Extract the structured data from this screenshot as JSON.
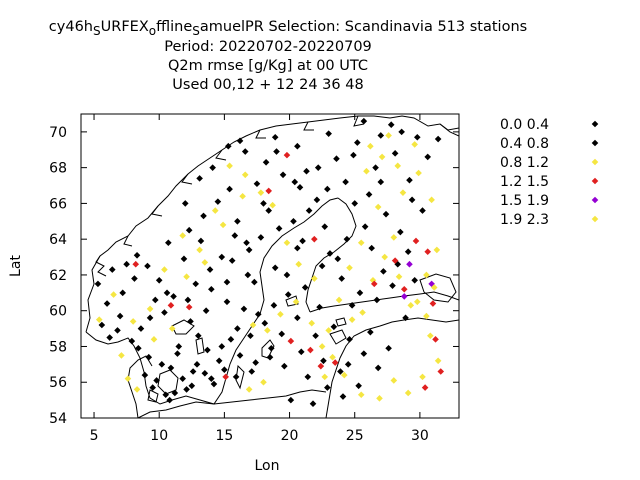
{
  "chart_data": {
    "type": "scatter",
    "title_lines": [
      "cy46h_S URFEX_o ffline_S amuelPR   Selection: Scandinavia    513 stations",
      "Period: 20220702-20220709",
      "Q2m rmse [g/Kg] at  00 UTC",
      "Used  00,12  + 12 24 36 48"
    ],
    "title_parts": {
      "t1": "cy46h",
      "s1": "S",
      "t2": "URFEX",
      "s2": "o",
      "t3": "ffline",
      "s3": "S",
      "t4": "amuelPR   Selection: Scandinavia    513 stations"
    },
    "xlabel": "Lon",
    "ylabel": "Lat",
    "xlim": [
      4,
      33
    ],
    "ylim": [
      54,
      71
    ],
    "xticks": [
      5,
      10,
      15,
      20,
      25,
      30
    ],
    "yticks": [
      54,
      56,
      58,
      60,
      62,
      64,
      66,
      68,
      70
    ],
    "legend_position": "right",
    "series": [
      {
        "name": "0.0 0.4",
        "color": "#000000",
        "points": [
          [
            11.2,
            55.4
          ],
          [
            12.1,
            55.6
          ],
          [
            10.5,
            55.3
          ],
          [
            9.8,
            56.1
          ],
          [
            10.2,
            57.0
          ],
          [
            8.9,
            56.4
          ],
          [
            11.8,
            56.2
          ],
          [
            12.5,
            55.8
          ],
          [
            9.5,
            55.7
          ],
          [
            10.9,
            56.8
          ],
          [
            14.2,
            55.9
          ],
          [
            13.5,
            56.5
          ],
          [
            15.0,
            56.7
          ],
          [
            16.2,
            57.5
          ],
          [
            14.8,
            58.0
          ],
          [
            17.0,
            58.6
          ],
          [
            18.1,
            59.3
          ],
          [
            17.6,
            59.8
          ],
          [
            16.5,
            60.1
          ],
          [
            15.2,
            60.5
          ],
          [
            14.0,
            61.2
          ],
          [
            12.8,
            61.5
          ],
          [
            13.9,
            62.3
          ],
          [
            15.6,
            62.8
          ],
          [
            16.9,
            63.4
          ],
          [
            17.8,
            64.1
          ],
          [
            19.2,
            64.6
          ],
          [
            20.3,
            65.0
          ],
          [
            21.5,
            65.6
          ],
          [
            22.1,
            66.2
          ],
          [
            20.8,
            66.9
          ],
          [
            19.5,
            67.6
          ],
          [
            18.2,
            68.3
          ],
          [
            16.6,
            68.9
          ],
          [
            15.3,
            69.2
          ],
          [
            23.6,
            68.5
          ],
          [
            25.2,
            69.4
          ],
          [
            27.0,
            69.8
          ],
          [
            28.6,
            70.0
          ],
          [
            29.8,
            69.7
          ],
          [
            24.3,
            67.2
          ],
          [
            26.1,
            66.5
          ],
          [
            27.4,
            65.4
          ],
          [
            25.8,
            64.7
          ],
          [
            24.4,
            64.0
          ],
          [
            23.1,
            63.2
          ],
          [
            22.5,
            62.5
          ],
          [
            24.0,
            61.8
          ],
          [
            25.4,
            61.0
          ],
          [
            26.7,
            60.6
          ],
          [
            27.9,
            61.4
          ],
          [
            28.3,
            62.6
          ],
          [
            29.1,
            63.3
          ],
          [
            5.3,
            61.5
          ],
          [
            6.0,
            60.4
          ],
          [
            5.6,
            59.2
          ],
          [
            6.8,
            58.9
          ],
          [
            7.9,
            58.3
          ],
          [
            8.6,
            59.0
          ],
          [
            9.3,
            59.6
          ],
          [
            10.4,
            59.9
          ],
          [
            11.1,
            60.8
          ],
          [
            10.0,
            61.7
          ],
          [
            9.1,
            62.5
          ],
          [
            8.3,
            63.1
          ],
          [
            10.7,
            63.8
          ],
          [
            12.3,
            64.5
          ],
          [
            13.4,
            65.3
          ],
          [
            14.5,
            66.1
          ],
          [
            15.4,
            66.8
          ],
          [
            13.1,
            67.4
          ],
          [
            12.0,
            66.0
          ],
          [
            6.4,
            62.3
          ],
          [
            7.2,
            61.0
          ],
          [
            18.6,
            57.9
          ],
          [
            19.4,
            58.7
          ],
          [
            20.6,
            59.6
          ],
          [
            22.3,
            60.2
          ],
          [
            23.4,
            59.1
          ],
          [
            24.6,
            58.4
          ],
          [
            25.7,
            57.6
          ],
          [
            26.8,
            56.8
          ],
          [
            27.6,
            57.9
          ],
          [
            21.4,
            56.3
          ],
          [
            22.9,
            55.7
          ],
          [
            24.1,
            55.2
          ],
          [
            20.1,
            55.0
          ],
          [
            21.8,
            54.8
          ],
          [
            13.0,
            58.6
          ],
          [
            14.6,
            57.2
          ],
          [
            11.5,
            58.0
          ],
          [
            12.4,
            59.4
          ],
          [
            16.0,
            59.0
          ],
          [
            17.3,
            61.6
          ],
          [
            18.9,
            62.4
          ],
          [
            20.6,
            63.5
          ],
          [
            18.4,
            65.6
          ],
          [
            16.0,
            65.0
          ],
          [
            22.7,
            64.7
          ],
          [
            26.6,
            68.0
          ],
          [
            28.1,
            68.8
          ],
          [
            31.4,
            69.6
          ],
          [
            30.6,
            68.6
          ],
          [
            29.4,
            66.2
          ],
          [
            21.2,
            61.3
          ],
          [
            23.7,
            62.9
          ],
          [
            19.9,
            60.9
          ],
          [
            15.8,
            64.2
          ]
        ]
      },
      {
        "name": "0.4 0.8",
        "color": "#000000",
        "points": [
          [
            10.8,
            55.0
          ],
          [
            12.6,
            56.6
          ],
          [
            9.2,
            57.4
          ],
          [
            11.4,
            57.6
          ],
          [
            13.7,
            57.8
          ],
          [
            15.5,
            58.4
          ],
          [
            17.4,
            57.1
          ],
          [
            18.8,
            60.3
          ],
          [
            16.8,
            62.0
          ],
          [
            14.8,
            63.0
          ],
          [
            19.8,
            62.0
          ],
          [
            21.0,
            63.9
          ],
          [
            22.9,
            66.8
          ],
          [
            21.3,
            67.8
          ],
          [
            19.0,
            68.9
          ],
          [
            17.5,
            67.1
          ],
          [
            25.0,
            66.0
          ],
          [
            26.3,
            63.5
          ],
          [
            27.2,
            62.2
          ],
          [
            24.8,
            60.3
          ],
          [
            22.0,
            58.6
          ],
          [
            23.9,
            56.6
          ],
          [
            25.3,
            55.8
          ],
          [
            26.2,
            58.8
          ],
          [
            28.9,
            59.6
          ],
          [
            29.6,
            61.7
          ],
          [
            7.5,
            62.6
          ],
          [
            8.1,
            61.8
          ],
          [
            9.7,
            60.6
          ],
          [
            7.0,
            59.7
          ],
          [
            8.4,
            57.9
          ],
          [
            6.2,
            58.5
          ],
          [
            11.9,
            62.9
          ],
          [
            13.2,
            63.9
          ],
          [
            14.1,
            68.0
          ],
          [
            16.2,
            69.5
          ],
          [
            18.9,
            69.7
          ],
          [
            20.6,
            69.2
          ],
          [
            23.0,
            69.9
          ],
          [
            25.7,
            70.6
          ],
          [
            27.8,
            70.4
          ],
          [
            29.2,
            67.3
          ],
          [
            30.2,
            65.6
          ],
          [
            28.5,
            64.4
          ],
          [
            27.0,
            67.2
          ],
          [
            24.9,
            68.7
          ],
          [
            22.2,
            68.0
          ],
          [
            20.4,
            67.2
          ],
          [
            18.0,
            66.0
          ],
          [
            16.7,
            63.8
          ],
          [
            15.2,
            61.6
          ],
          [
            13.6,
            60.0
          ],
          [
            12.2,
            60.6
          ],
          [
            10.6,
            61.0
          ],
          [
            12.9,
            57.0
          ],
          [
            14.0,
            56.2
          ],
          [
            15.9,
            56.3
          ],
          [
            17.1,
            56.6
          ],
          [
            18.5,
            57.4
          ],
          [
            19.6,
            56.9
          ],
          [
            20.9,
            57.7
          ],
          [
            22.6,
            57.2
          ],
          [
            24.5,
            57.0
          ]
        ]
      },
      {
        "name": "0.8 1.2",
        "color": "#f5e642",
        "points": [
          [
            5.4,
            59.5
          ],
          [
            6.5,
            60.9
          ],
          [
            7.6,
            56.2
          ],
          [
            8.3,
            55.6
          ],
          [
            9.6,
            58.4
          ],
          [
            11.0,
            59.0
          ],
          [
            12.1,
            61.9
          ],
          [
            13.5,
            62.7
          ],
          [
            14.9,
            64.8
          ],
          [
            16.4,
            66.4
          ],
          [
            17.2,
            59.2
          ],
          [
            18.3,
            58.9
          ],
          [
            19.3,
            59.8
          ],
          [
            20.5,
            60.5
          ],
          [
            21.7,
            59.3
          ],
          [
            22.5,
            58.0
          ],
          [
            23.3,
            57.4
          ],
          [
            24.8,
            59.5
          ],
          [
            25.6,
            59.9
          ],
          [
            26.4,
            61.7
          ],
          [
            27.3,
            63.0
          ],
          [
            28.0,
            64.1
          ],
          [
            28.7,
            66.6
          ],
          [
            29.9,
            67.7
          ],
          [
            30.9,
            66.2
          ],
          [
            31.3,
            63.4
          ],
          [
            30.5,
            62.0
          ],
          [
            29.3,
            60.3
          ],
          [
            30.8,
            58.6
          ],
          [
            31.4,
            57.2
          ],
          [
            30.2,
            56.3
          ],
          [
            29.1,
            55.4
          ],
          [
            28.0,
            56.1
          ],
          [
            26.9,
            55.1
          ],
          [
            25.5,
            55.3
          ],
          [
            24.2,
            56.4
          ],
          [
            23.0,
            58.9
          ],
          [
            21.9,
            61.8
          ],
          [
            20.7,
            62.6
          ],
          [
            19.8,
            63.8
          ],
          [
            18.7,
            65.9
          ],
          [
            17.8,
            66.6
          ],
          [
            16.6,
            67.6
          ],
          [
            15.4,
            68.1
          ],
          [
            14.3,
            65.6
          ],
          [
            13.1,
            63.4
          ],
          [
            11.8,
            64.2
          ],
          [
            10.4,
            62.3
          ],
          [
            9.3,
            60.1
          ],
          [
            8.0,
            59.4
          ],
          [
            7.1,
            57.5
          ],
          [
            26.2,
            69.2
          ],
          [
            27.6,
            69.8
          ],
          [
            28.3,
            68.1
          ],
          [
            29.6,
            69.3
          ],
          [
            27.1,
            68.6
          ],
          [
            25.9,
            67.8
          ],
          [
            26.8,
            65.8
          ],
          [
            25.5,
            63.8
          ],
          [
            24.6,
            62.4
          ],
          [
            23.8,
            60.6
          ],
          [
            22.7,
            56.3
          ],
          [
            18.0,
            56.0
          ],
          [
            16.9,
            55.6
          ]
        ]
      },
      {
        "name": "1.2 1.5",
        "color": "#e02020",
        "points": [
          [
            8.2,
            62.6
          ],
          [
            10.9,
            60.3
          ],
          [
            12.3,
            60.2
          ],
          [
            15.1,
            56.3
          ],
          [
            18.4,
            66.7
          ],
          [
            19.8,
            68.7
          ],
          [
            21.9,
            64.0
          ],
          [
            20.1,
            58.3
          ],
          [
            21.6,
            57.8
          ],
          [
            22.4,
            56.9
          ],
          [
            23.5,
            57.1
          ],
          [
            26.5,
            61.5
          ],
          [
            28.1,
            62.8
          ],
          [
            29.7,
            63.9
          ],
          [
            30.6,
            63.3
          ],
          [
            31.0,
            60.4
          ],
          [
            31.2,
            58.4
          ],
          [
            31.6,
            56.6
          ],
          [
            30.4,
            55.7
          ],
          [
            28.8,
            61.2
          ]
        ]
      },
      {
        "name": "1.5 1.9",
        "color": "#9400d3",
        "points": [
          [
            29.2,
            62.6
          ],
          [
            30.9,
            61.5
          ],
          [
            28.8,
            60.8
          ]
        ]
      },
      {
        "name": "1.9 2.3",
        "color": "#f5e642",
        "points": [
          [
            28.4,
            61.9
          ],
          [
            31.1,
            61.3
          ],
          [
            29.8,
            60.5
          ],
          [
            30.5,
            59.7
          ]
        ]
      }
    ]
  }
}
